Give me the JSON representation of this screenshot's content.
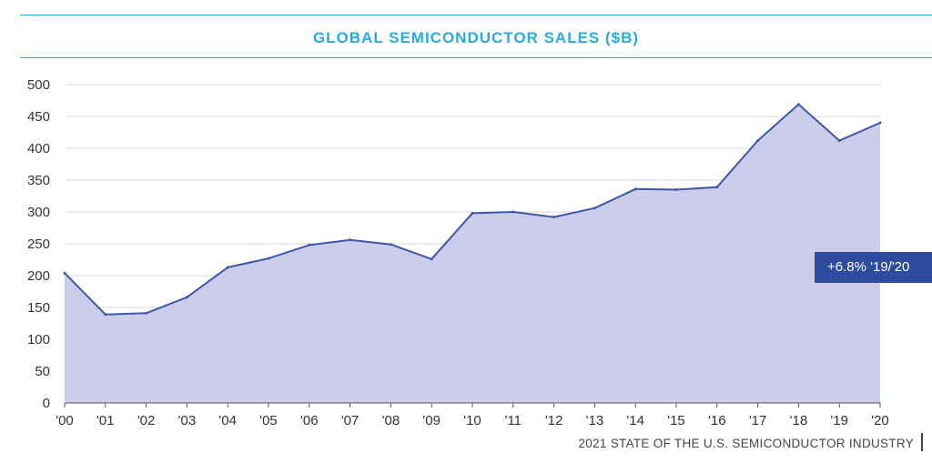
{
  "header": {
    "title": "GLOBAL SEMICONDUCTOR SALES ($B)"
  },
  "annotation": {
    "text": "+6.8% '19/'20"
  },
  "footer": {
    "text": "2021 STATE OF THE U.S. SEMICONDUCTOR INDUSTRY"
  },
  "colors": {
    "accent": "#29aae1",
    "line": "#3f57a7",
    "fill": "#cccdea",
    "annotation_bg": "#2e4c9e"
  },
  "chart_data": {
    "type": "area",
    "title": "GLOBAL SEMICONDUCTOR SALES ($B)",
    "xlabel": "",
    "ylabel": "",
    "ylim": [
      0,
      500
    ],
    "yticks": [
      0,
      50,
      100,
      150,
      200,
      250,
      300,
      350,
      400,
      450,
      500
    ],
    "grid": true,
    "categories": [
      "'00",
      "'01",
      "'02",
      "'03",
      "'04",
      "'05",
      "'06",
      "'07",
      "'08",
      "'09",
      "'10",
      "'11",
      "'12",
      "'13",
      "'14",
      "'15",
      "'16",
      "'17",
      "'18",
      "'19",
      "'20"
    ],
    "values": [
      204,
      139,
      141,
      166,
      213,
      227,
      248,
      256,
      249,
      226,
      298,
      300,
      292,
      306,
      336,
      335,
      339,
      412,
      469,
      412,
      440
    ]
  }
}
